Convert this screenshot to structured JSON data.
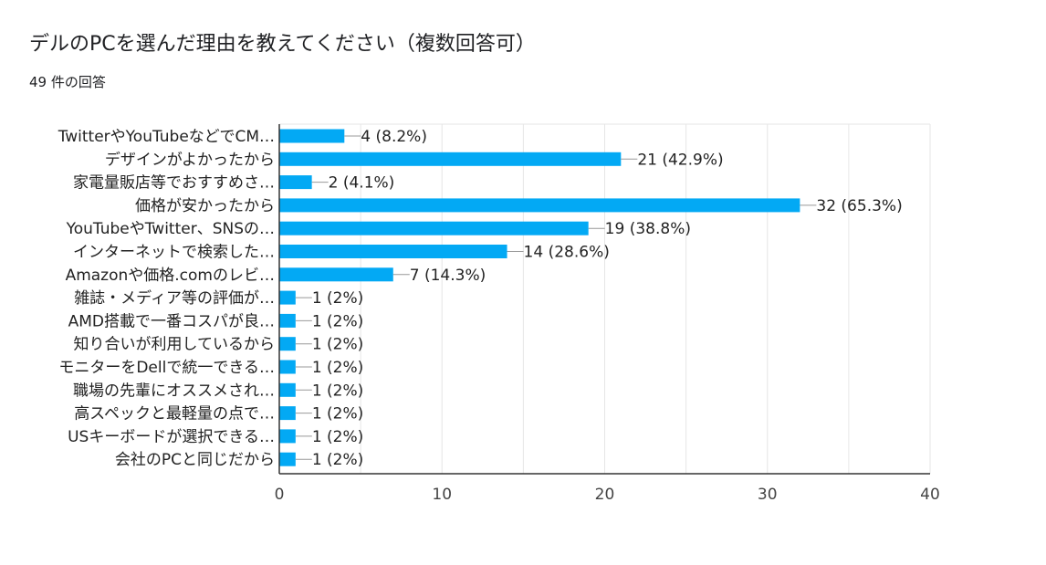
{
  "header": {
    "title": "デルのPCを選んだ理由を教えてください（複数回答可）",
    "responses": "49 件の回答"
  },
  "colors": {
    "bar": "#03a9f4",
    "grid": "#e6e6e6",
    "axis": "#333333",
    "connector": "#999999"
  },
  "chart_data": {
    "type": "bar",
    "orientation": "horizontal",
    "categories": [
      "TwitterやYouTubeなどでCM…",
      "デザインがよかったから",
      "家電量販店等でおすすめさ…",
      "価格が安かったから",
      "YouTubeやTwitter、SNSの…",
      "インターネットで検索した…",
      "Amazonや価格.comのレビ…",
      "雑誌・メディア等の評価が…",
      "AMD搭載で一番コスパが良…",
      "知り合いが利用しているから",
      "モニターをDellで統一できる…",
      "職場の先輩にオススメされ…",
      "高スペックと最軽量の点で…",
      "USキーボードが選択できる…",
      "会社のPCと同じだから"
    ],
    "values": [
      4,
      21,
      2,
      32,
      19,
      14,
      7,
      1,
      1,
      1,
      1,
      1,
      1,
      1,
      1
    ],
    "data_labels": [
      "4 (8.2%)",
      "21 (42.9%)",
      "2 (4.1%)",
      "32 (65.3%)",
      "19 (38.8%)",
      "14 (28.6%)",
      "7 (14.3%)",
      "1 (2%)",
      "1 (2%)",
      "1 (2%)",
      "1 (2%)",
      "1 (2%)",
      "1 (2%)",
      "1 (2%)",
      "1 (2%)"
    ],
    "xlim": [
      0,
      40
    ],
    "xticks": [
      0,
      10,
      20,
      30,
      40
    ],
    "grid": true
  }
}
